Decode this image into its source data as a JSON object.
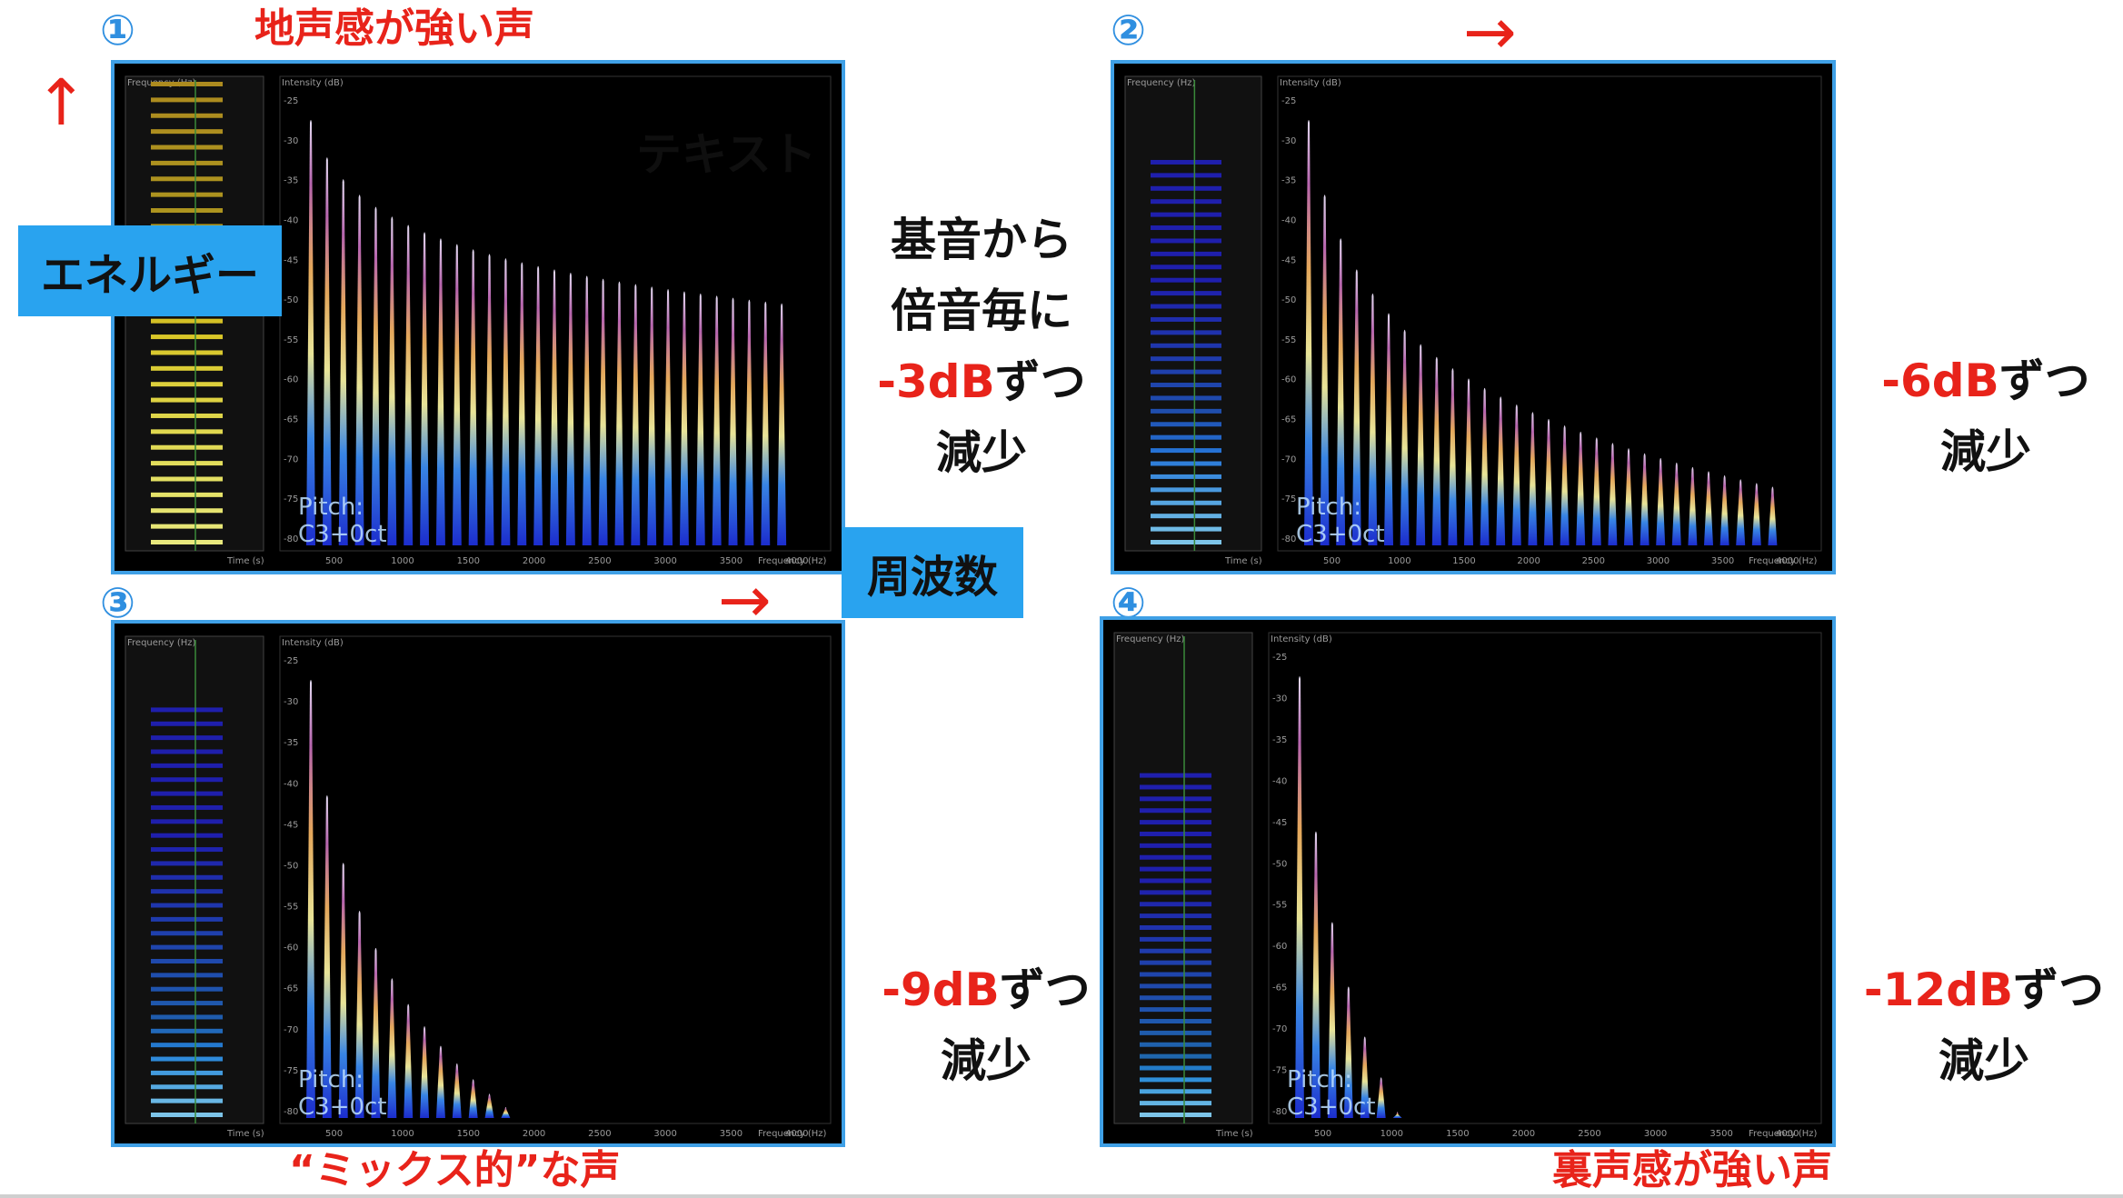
{
  "labels": {
    "energy": "エネルギー",
    "frequency": "周波数",
    "watermark": "テキスト",
    "arrow_right": "→",
    "arrow_up": "↑"
  },
  "center_note": {
    "line1": "基音から",
    "line2": "倍音毎に",
    "db": "-3dB",
    "zutsu": "ずつ",
    "line4": "減少"
  },
  "panels": [
    {
      "marker": "①",
      "title": "地声感が強い声",
      "db": "-3dB",
      "zutsu": "ずつ",
      "decrease": "減少",
      "pitch_line1": "Pitch:",
      "pitch_line2": "C3+0ct",
      "intensity_label": "Intensity (dB)",
      "frequency_axis_label": "Frequency (Hz)",
      "time_axis_label": "Time (s)",
      "freq_ticks": [
        "500",
        "1000",
        "1500",
        "2000",
        "2500",
        "3000",
        "3500",
        "4000"
      ],
      "db_ticks": [
        "-25",
        "-30",
        "-35",
        "-40",
        "-45",
        "-50",
        "-55",
        "-60",
        "-65",
        "-70",
        "-75",
        "-80"
      ],
      "slope_db_per_harmonic": -3
    },
    {
      "marker": "②",
      "title": "",
      "db": "-6dB",
      "zutsu": "ずつ",
      "decrease": "減少",
      "pitch_line1": "Pitch:",
      "pitch_line2": "C3+0ct",
      "intensity_label": "Intensity (dB)",
      "frequency_axis_label": "Frequency (Hz)",
      "time_axis_label": "Time (s)",
      "freq_ticks": [
        "500",
        "1000",
        "1500",
        "2000",
        "2500",
        "3000",
        "3500",
        "4000"
      ],
      "db_ticks": [
        "-25",
        "-30",
        "-35",
        "-40",
        "-45",
        "-50",
        "-55",
        "-60",
        "-65",
        "-70",
        "-75",
        "-80"
      ],
      "slope_db_per_harmonic": -6
    },
    {
      "marker": "③",
      "title": "“ミックス的”な声",
      "db": "-9dB",
      "zutsu": "ずつ",
      "decrease": "減少",
      "pitch_line1": "Pitch:",
      "pitch_line2": "C3+0ct",
      "intensity_label": "Intensity (dB)",
      "frequency_axis_label": "Frequency (Hz)",
      "time_axis_label": "Time (s)",
      "freq_ticks": [
        "500",
        "1000",
        "1500",
        "2000",
        "2500",
        "3000",
        "3500",
        "4000"
      ],
      "db_ticks": [
        "-25",
        "-30",
        "-35",
        "-40",
        "-45",
        "-50",
        "-55",
        "-60",
        "-65",
        "-70",
        "-75",
        "-80"
      ],
      "slope_db_per_harmonic": -9
    },
    {
      "marker": "④",
      "title": "裏声感が強い声",
      "db": "-12dB",
      "zutsu": "ずつ",
      "decrease": "減少",
      "pitch_line1": "Pitch:",
      "pitch_line2": "C3+0ct",
      "intensity_label": "Intensity (dB)",
      "frequency_axis_label": "Frequency (Hz)",
      "time_axis_label": "Time (s)",
      "freq_ticks": [
        "500",
        "1000",
        "1500",
        "2000",
        "2500",
        "3000",
        "3500",
        "4000"
      ],
      "db_ticks": [
        "-25",
        "-30",
        "-35",
        "-40",
        "-45",
        "-50",
        "-55",
        "-60",
        "-65",
        "-70",
        "-75",
        "-80"
      ],
      "slope_db_per_harmonic": -12
    }
  ],
  "colors": {
    "accent_red": "#e8231a",
    "border_blue": "#3fa0e6",
    "tag_blue": "#29a3ef",
    "marker_blue": "#2f8fe0"
  }
}
